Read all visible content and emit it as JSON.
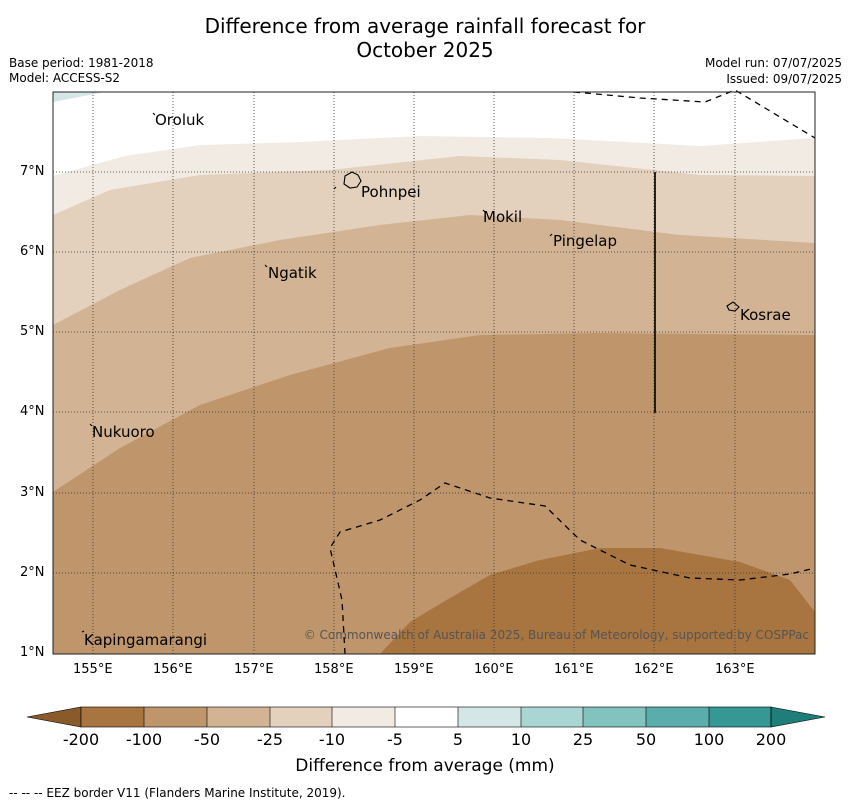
{
  "title_line1": "Difference from average rainfall forecast for",
  "title_line2": "October 2025",
  "meta_left": {
    "base_period": "Base period: 1981-2018",
    "model": "Model: ACCESS-S2"
  },
  "meta_right": {
    "model_run": "Model run: 07/07/2025",
    "issued": "Issued: 09/07/2025"
  },
  "map": {
    "lon_range": [
      154.5,
      164
    ],
    "lat_range": [
      1,
      8
    ],
    "lon_ticks": [
      "155°E",
      "156°E",
      "157°E",
      "158°E",
      "159°E",
      "160°E",
      "161°E",
      "162°E",
      "163°E"
    ],
    "lat_ticks": [
      "7°N",
      "6°N",
      "5°N",
      "4°N",
      "3°N",
      "2°N",
      "1°N"
    ],
    "places": [
      {
        "name": "Oroluk",
        "lon": 155.8,
        "lat": 7.6
      },
      {
        "name": "Pohnpei",
        "lon": 158.3,
        "lat": 6.8
      },
      {
        "name": "Mokil",
        "lon": 159.8,
        "lat": 6.4
      },
      {
        "name": "Pingelap",
        "lon": 160.7,
        "lat": 6.2
      },
      {
        "name": "Ngatik",
        "lon": 157.2,
        "lat": 5.8
      },
      {
        "name": "Kosrae",
        "lon": 163.0,
        "lat": 5.3
      },
      {
        "name": "Nukuoro",
        "lon": 155.0,
        "lat": 3.8
      },
      {
        "name": "Kapingamarangi",
        "lon": 154.9,
        "lat": 1.2
      }
    ],
    "credit": "© Commonwealth of Australia 2025, Bureau of Meteorology, supported by COSPPac"
  },
  "colorbar": {
    "labels": [
      "-200",
      "-100",
      "-50",
      "-25",
      "-10",
      "-5",
      "5",
      "10",
      "25",
      "50",
      "100",
      "200"
    ],
    "colors": [
      "#8a5a2b",
      "#a8743f",
      "#bf956b",
      "#d2b393",
      "#e3d0bd",
      "#f2ebe3",
      "#ffffff",
      "#d3e8e6",
      "#a9d5d3",
      "#82c3c0",
      "#5aadaa",
      "#359895",
      "#1f7d7a"
    ],
    "title": "Difference from average (mm)"
  },
  "footer": "--  --  -- EEZ border V11 (Flanders Marine Institute, 2019)."
}
